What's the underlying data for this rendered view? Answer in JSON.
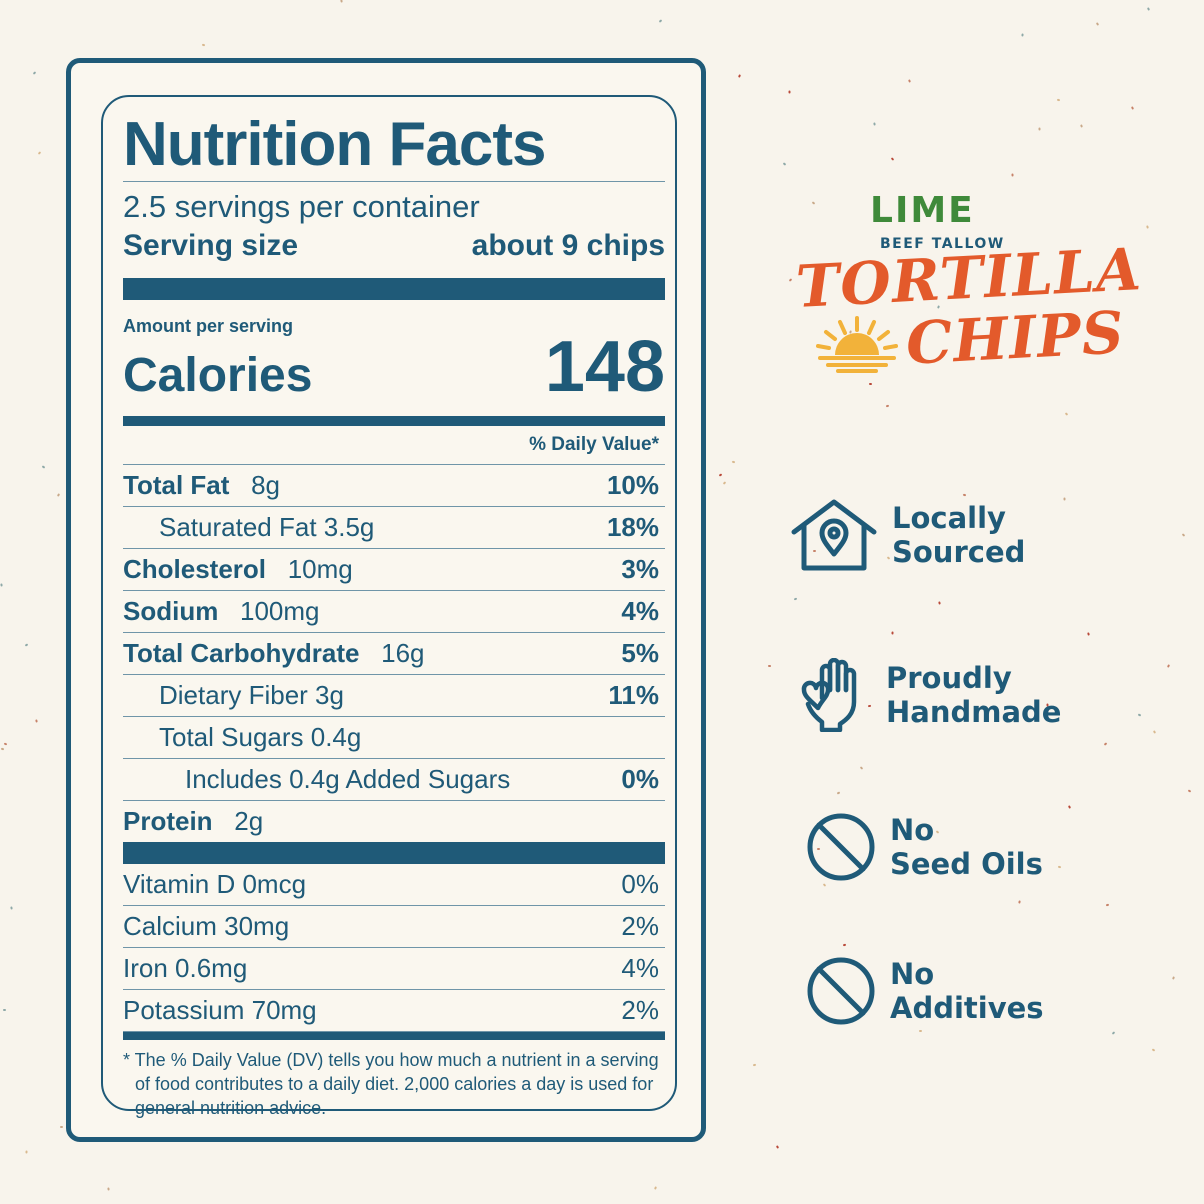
{
  "nutrition": {
    "title": "Nutrition Facts",
    "servings_per_container": "2.5 servings per container",
    "serving_size_label": "Serving size",
    "serving_size_value": "about 9 chips",
    "amount_per_serving": "Amount per serving",
    "calories_label": "Calories",
    "calories_value": "148",
    "daily_value_header": "% Daily Value*",
    "nutrients": [
      {
        "name": "Total Fat",
        "amount": "8g",
        "dv": "10%"
      },
      {
        "name": "Saturated Fat 3.5g",
        "dv": "18%"
      },
      {
        "name": "Cholesterol",
        "amount": "10mg",
        "dv": "3%"
      },
      {
        "name": "Sodium",
        "amount": "100mg",
        "dv": "4%"
      },
      {
        "name": "Total Carbohydrate",
        "amount": "16g",
        "dv": "5%"
      },
      {
        "name": "Dietary Fiber 3g",
        "dv": "11%"
      },
      {
        "name": "Total Sugars 0.4g",
        "dv": ""
      },
      {
        "name": "Includes 0.4g Added Sugars",
        "dv": "0%"
      },
      {
        "name": "Protein",
        "amount": "2g"
      }
    ],
    "vitamins": [
      {
        "name": "Vitamin D 0mcg",
        "dv": "0%"
      },
      {
        "name": "Calcium 30mg",
        "dv": "2%"
      },
      {
        "name": "Iron 0.6mg",
        "dv": "4%"
      },
      {
        "name": "Potassium 70mg",
        "dv": "2%"
      }
    ],
    "footnote": "* The % Daily Value (DV) tells you how much a nutrient in a serving of food contributes to a daily diet. 2,000 calories a day is used for general nutrition advice."
  },
  "brand": {
    "flavor": "LIME",
    "subtitle": "BEEF TALLOW",
    "line1": "TORTILLA",
    "line2": "CHIPS",
    "sun_icon": "sun-icon"
  },
  "features": [
    {
      "icon": "house-location-icon",
      "line1": "Locally",
      "line2": "Sourced"
    },
    {
      "icon": "hand-heart-icon",
      "line1": "Proudly",
      "line2": "Handmade"
    },
    {
      "icon": "prohibited-icon",
      "line1": "No",
      "line2": "Seed Oils"
    },
    {
      "icon": "prohibited-icon",
      "line1": "No",
      "line2": "Additives"
    }
  ],
  "colors": {
    "primary": "#1f5a78",
    "background": "#f8f4ec",
    "card": "#faf7ef",
    "brand_green": "#3f8a3a",
    "brand_orange": "#e35a2b",
    "brand_yellow": "#f2b23a"
  }
}
